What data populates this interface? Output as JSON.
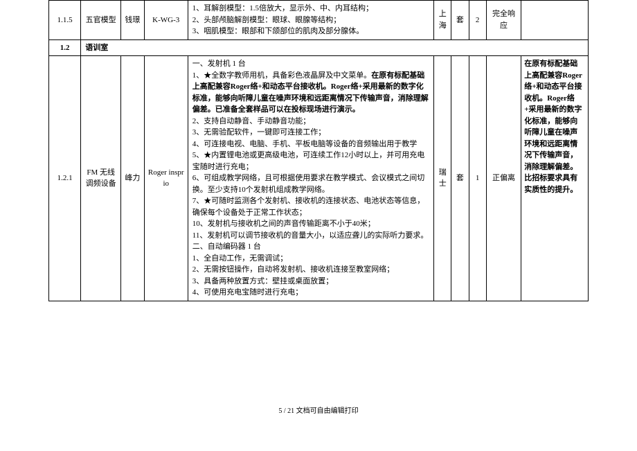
{
  "rows": {
    "r115": {
      "no": "1.1.5",
      "name": "五官模型",
      "brand": "钱璟",
      "model": "K-WG-3",
      "descLines": [
        "1、耳解剖模型：1.5倍放大，显示外、中、内耳结构；",
        "2、头部颅脑解剖模型：眼球、眼腺等结构；",
        "3、咽肌模型：眼部和下颌部位的肌肉及部分腺体。"
      ],
      "origin": "上海",
      "unit": "套",
      "qty": "2",
      "resp": "完全响应",
      "remark": ""
    },
    "r12": {
      "no": "1.2",
      "name": "语训室"
    },
    "r121": {
      "no": "1.2.1",
      "name": "FM 无线调频设备",
      "brand": "峰力",
      "model": "Roger insprio",
      "origin": "瑞士",
      "unit": "套",
      "qty": "1",
      "resp": "正偏离",
      "descLines": {
        "a": "一、发射机 1 台",
        "b_pre": "1、★全数字教师用机，具备彩色液晶屏及中文菜单。",
        "b_bold": "在原有标配基础上高配兼容Roger络+和动态平台接收机。Roger络+采用最新的数字化标准，能够向听障儿童在噪声环境和远距离情况下传输声音，消除理解偏差。已准备全套样品可以在投标现场进行演示。",
        "c": "2、支持自动静音、手动静音功能；",
        "d": "3、无需验配软件，一键即可连接工作；",
        "e": "4、可连接电视、电脑、手机、平板电脑等设备的音频输出用于教学",
        "f": "5、★内置锂电池或更高级电池，可连续工作12小时以上，并可用充电宝随时进行充电；",
        "g": "6、可组成教学网络，且可根据使用要求在教学模式、会议模式之间切换。至少支持10个发射机组成教学网络。",
        "h": "7、★可随时监测各个发射机、接收机的连接状态、电池状态等信息，确保每个设备处于正常工作状态；",
        "i": "10、发射机与接收机之间的声音传输距离不小于40米；",
        "j": "11、发射机可以调节接收机的音量大小，以适应聋儿的实际听力要求。",
        "k": "二、自动编码器 1 台",
        "l": "1、全自动工作，无需调试；",
        "m": "2、无需按钮操作，自动将发射机、接收机连接至教室网络；",
        "n": "3、具备两种放置方式：壁挂或桌面放置；",
        "o": "4、可使用充电宝随时进行充电；"
      },
      "remark": "在原有标配基础上高配兼容Roger络+和动态平台接收机。Roger络+采用最新的数字化标准，能够向听障儿童在噪声环境和远距离情况下传输声音，消除理解偏差。比招标要求具有实质性的提升。"
    }
  },
  "footer": "5 / 21 文档可自由编辑打印",
  "style": {
    "fontSize": 11,
    "borderColor": "#000000",
    "background": "#ffffff",
    "boldWeight": "bold"
  }
}
